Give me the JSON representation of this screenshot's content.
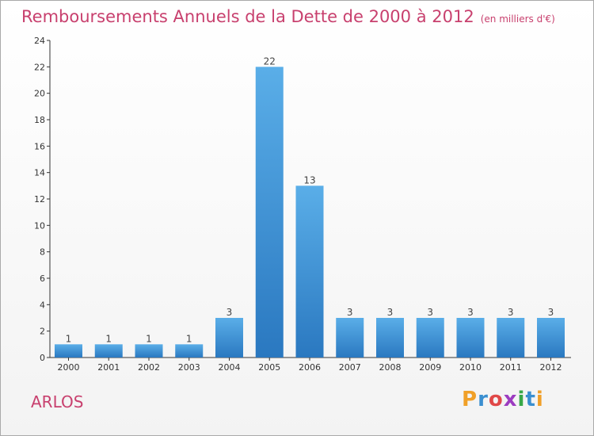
{
  "title": "Remboursements Annuels de la Dette de 2000 à 2012",
  "unit_note": "(en milliers d'€)",
  "place_name": "ARLOS",
  "logo": {
    "text": "Proxiti",
    "colors": [
      "#f0a028",
      "#3a8fd0",
      "#e04848",
      "#9c3cc0",
      "#38a848",
      "#3a8fd0",
      "#f0a028"
    ]
  },
  "colors": {
    "bar_light": "#5aaee8",
    "bar_dark": "#2a78c0",
    "title": "#c8406e"
  },
  "chart_data": {
    "type": "bar",
    "categories": [
      "2000",
      "2001",
      "2002",
      "2003",
      "2004",
      "2005",
      "2006",
      "2007",
      "2008",
      "2009",
      "2010",
      "2011",
      "2012"
    ],
    "values": [
      1,
      1,
      1,
      1,
      3,
      22,
      13,
      3,
      3,
      3,
      3,
      3,
      3
    ],
    "data_labels": [
      "1",
      "1",
      "1",
      "1",
      "3",
      "22",
      "13",
      "3",
      "3",
      "3",
      "3",
      "3",
      "3"
    ],
    "ylim": [
      0,
      24
    ],
    "yticks": [
      0,
      2,
      4,
      6,
      8,
      10,
      12,
      14,
      16,
      18,
      20,
      22,
      24
    ],
    "grid": false,
    "xlabel": "",
    "ylabel": ""
  }
}
